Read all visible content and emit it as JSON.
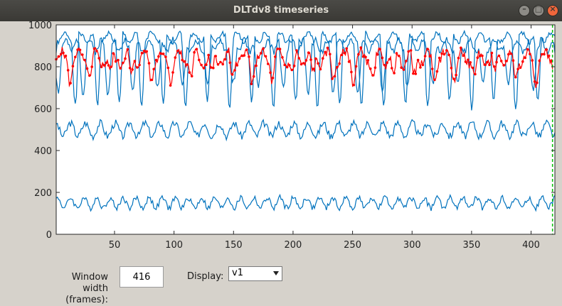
{
  "window": {
    "title": "DLTdv8 timeseries",
    "buttons": {
      "minimize": "–",
      "maximize": "□",
      "close": "×"
    }
  },
  "controls": {
    "window_width_label_1": "Window width",
    "window_width_label_2": "(frames):",
    "window_width_value": "416",
    "display_label": "Display:",
    "display_selected": "v1"
  },
  "chart_data": {
    "type": "line",
    "xlim": [
      1,
      420
    ],
    "ylim": [
      0,
      1000
    ],
    "xticks": [
      50,
      100,
      150,
      200,
      250,
      300,
      350,
      400
    ],
    "yticks": [
      0,
      200,
      400,
      600,
      800,
      1000
    ],
    "xlabel": "",
    "ylabel": "",
    "grid": false,
    "series": [
      {
        "color": "#0072bd",
        "baseline": 940,
        "amp": 30,
        "period": 12,
        "dips": true,
        "dip_depth": 320,
        "dip_period": 18.5,
        "seed": 1
      },
      {
        "color": "#0072bd",
        "baseline": 900,
        "amp": 40,
        "period": 10,
        "dips": true,
        "dip_depth": 200,
        "dip_period": 21,
        "seed": 2
      },
      {
        "color": "#0072bd",
        "baseline": 500,
        "amp": 45,
        "period": 12.5,
        "dips": false,
        "seed": 3
      },
      {
        "color": "#0072bd",
        "baseline": 150,
        "amp": 35,
        "period": 11,
        "dips": false,
        "seed": 4
      },
      {
        "color": "#ff0000",
        "baseline": 840,
        "amp": 50,
        "period": 14,
        "dips": true,
        "dip_depth": 90,
        "dip_period": 17,
        "seed": 5,
        "markers": true,
        "x_start": 1,
        "x_end": 418
      }
    ],
    "cursor_x": 418,
    "cursor_color": "#00c000"
  }
}
